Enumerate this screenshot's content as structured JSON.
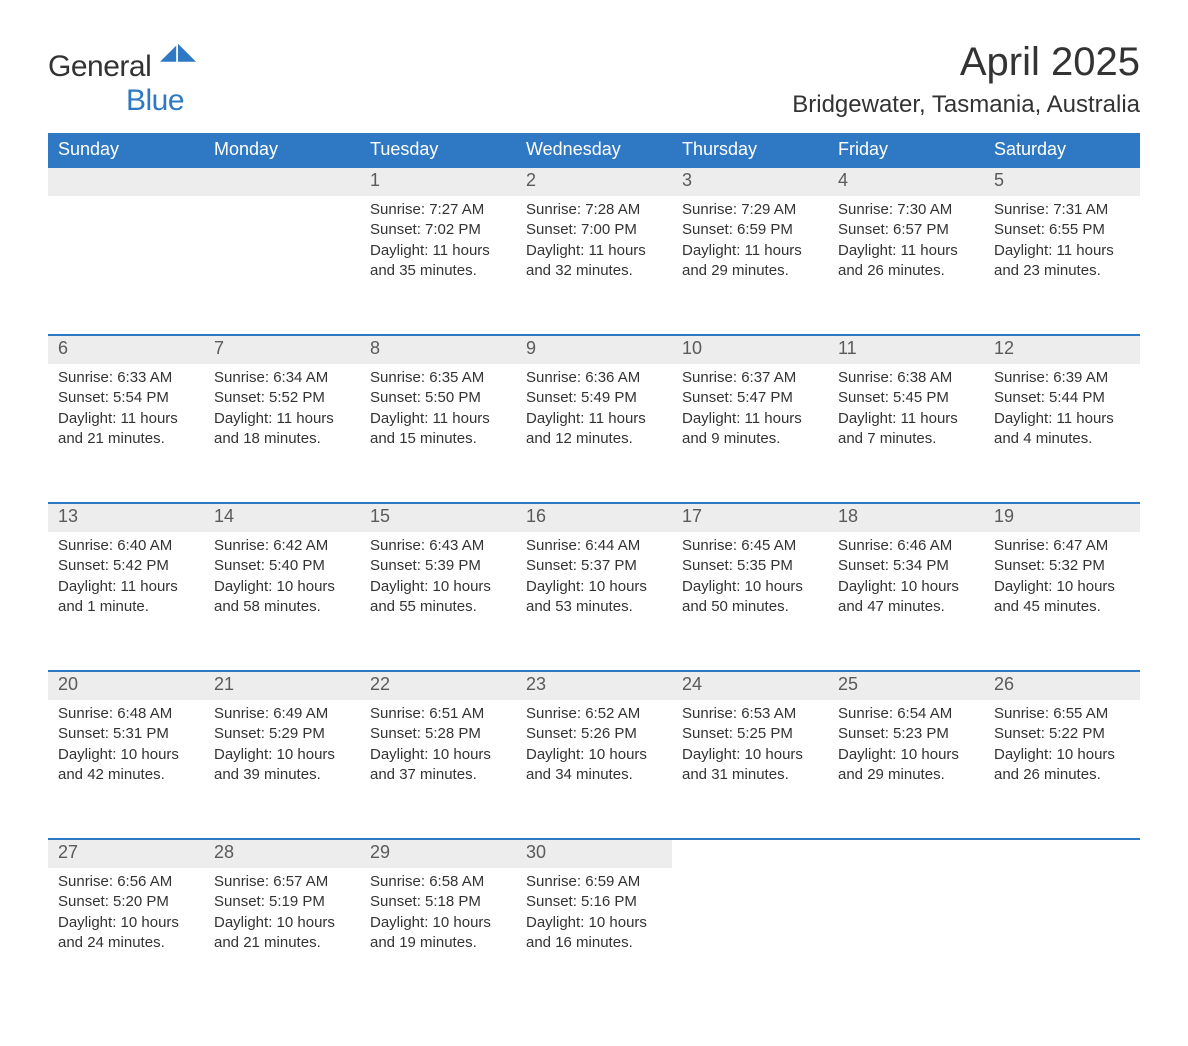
{
  "logo": {
    "text1": "General",
    "text2": "Blue",
    "color1": "#333333",
    "color2": "#2f78c3"
  },
  "title": {
    "month": "April 2025",
    "location": "Bridgewater, Tasmania, Australia"
  },
  "columns": [
    "Sunday",
    "Monday",
    "Tuesday",
    "Wednesday",
    "Thursday",
    "Friday",
    "Saturday"
  ],
  "colors": {
    "header_bg": "#2f78c3",
    "header_text": "#ffffff",
    "daynum_bg": "#ededed",
    "daynum_border": "#2f78c3",
    "body_text": "#333333",
    "background": "#ffffff"
  },
  "font": {
    "family": "Arial",
    "header_size_pt": 14,
    "title_size_pt": 30,
    "subtitle_size_pt": 18,
    "body_size_pt": 11
  },
  "first_day_column_index": 2,
  "days": [
    {
      "n": 1,
      "sunrise": "7:27 AM",
      "sunset": "7:02 PM",
      "daylight": "11 hours and 35 minutes."
    },
    {
      "n": 2,
      "sunrise": "7:28 AM",
      "sunset": "7:00 PM",
      "daylight": "11 hours and 32 minutes."
    },
    {
      "n": 3,
      "sunrise": "7:29 AM",
      "sunset": "6:59 PM",
      "daylight": "11 hours and 29 minutes."
    },
    {
      "n": 4,
      "sunrise": "7:30 AM",
      "sunset": "6:57 PM",
      "daylight": "11 hours and 26 minutes."
    },
    {
      "n": 5,
      "sunrise": "7:31 AM",
      "sunset": "6:55 PM",
      "daylight": "11 hours and 23 minutes."
    },
    {
      "n": 6,
      "sunrise": "6:33 AM",
      "sunset": "5:54 PM",
      "daylight": "11 hours and 21 minutes."
    },
    {
      "n": 7,
      "sunrise": "6:34 AM",
      "sunset": "5:52 PM",
      "daylight": "11 hours and 18 minutes."
    },
    {
      "n": 8,
      "sunrise": "6:35 AM",
      "sunset": "5:50 PM",
      "daylight": "11 hours and 15 minutes."
    },
    {
      "n": 9,
      "sunrise": "6:36 AM",
      "sunset": "5:49 PM",
      "daylight": "11 hours and 12 minutes."
    },
    {
      "n": 10,
      "sunrise": "6:37 AM",
      "sunset": "5:47 PM",
      "daylight": "11 hours and 9 minutes."
    },
    {
      "n": 11,
      "sunrise": "6:38 AM",
      "sunset": "5:45 PM",
      "daylight": "11 hours and 7 minutes."
    },
    {
      "n": 12,
      "sunrise": "6:39 AM",
      "sunset": "5:44 PM",
      "daylight": "11 hours and 4 minutes."
    },
    {
      "n": 13,
      "sunrise": "6:40 AM",
      "sunset": "5:42 PM",
      "daylight": "11 hours and 1 minute."
    },
    {
      "n": 14,
      "sunrise": "6:42 AM",
      "sunset": "5:40 PM",
      "daylight": "10 hours and 58 minutes."
    },
    {
      "n": 15,
      "sunrise": "6:43 AM",
      "sunset": "5:39 PM",
      "daylight": "10 hours and 55 minutes."
    },
    {
      "n": 16,
      "sunrise": "6:44 AM",
      "sunset": "5:37 PM",
      "daylight": "10 hours and 53 minutes."
    },
    {
      "n": 17,
      "sunrise": "6:45 AM",
      "sunset": "5:35 PM",
      "daylight": "10 hours and 50 minutes."
    },
    {
      "n": 18,
      "sunrise": "6:46 AM",
      "sunset": "5:34 PM",
      "daylight": "10 hours and 47 minutes."
    },
    {
      "n": 19,
      "sunrise": "6:47 AM",
      "sunset": "5:32 PM",
      "daylight": "10 hours and 45 minutes."
    },
    {
      "n": 20,
      "sunrise": "6:48 AM",
      "sunset": "5:31 PM",
      "daylight": "10 hours and 42 minutes."
    },
    {
      "n": 21,
      "sunrise": "6:49 AM",
      "sunset": "5:29 PM",
      "daylight": "10 hours and 39 minutes."
    },
    {
      "n": 22,
      "sunrise": "6:51 AM",
      "sunset": "5:28 PM",
      "daylight": "10 hours and 37 minutes."
    },
    {
      "n": 23,
      "sunrise": "6:52 AM",
      "sunset": "5:26 PM",
      "daylight": "10 hours and 34 minutes."
    },
    {
      "n": 24,
      "sunrise": "6:53 AM",
      "sunset": "5:25 PM",
      "daylight": "10 hours and 31 minutes."
    },
    {
      "n": 25,
      "sunrise": "6:54 AM",
      "sunset": "5:23 PM",
      "daylight": "10 hours and 29 minutes."
    },
    {
      "n": 26,
      "sunrise": "6:55 AM",
      "sunset": "5:22 PM",
      "daylight": "10 hours and 26 minutes."
    },
    {
      "n": 27,
      "sunrise": "6:56 AM",
      "sunset": "5:20 PM",
      "daylight": "10 hours and 24 minutes."
    },
    {
      "n": 28,
      "sunrise": "6:57 AM",
      "sunset": "5:19 PM",
      "daylight": "10 hours and 21 minutes."
    },
    {
      "n": 29,
      "sunrise": "6:58 AM",
      "sunset": "5:18 PM",
      "daylight": "10 hours and 19 minutes."
    },
    {
      "n": 30,
      "sunrise": "6:59 AM",
      "sunset": "5:16 PM",
      "daylight": "10 hours and 16 minutes."
    }
  ],
  "labels": {
    "sunrise": "Sunrise:",
    "sunset": "Sunset:",
    "daylight": "Daylight:"
  }
}
